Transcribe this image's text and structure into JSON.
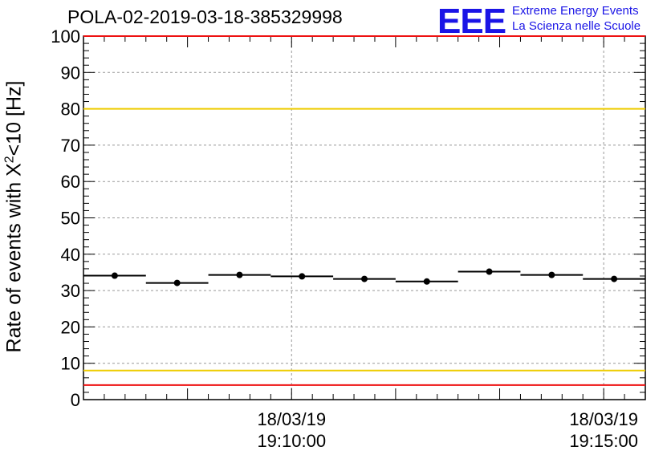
{
  "header": {
    "title": "POLA-02-2019-03-18-385329998",
    "logo": "EEE",
    "logo_line1": "Extreme Energy Events",
    "logo_line2": "La Scienza nelle Scuole"
  },
  "axis": {
    "ylabel_main": "Rate of events with X",
    "ylabel_sup": "2",
    "ylabel_tail": "<10 [Hz]"
  },
  "colors": {
    "red_line": "#ee1111",
    "yellow_line": "#eecc00",
    "grid": "#999999",
    "data": "#000000"
  },
  "chart_data": {
    "type": "scatter",
    "title": "POLA-02-2019-03-18-385329998",
    "xlabel": "",
    "ylabel": "Rate of events with X^2<10 [Hz]",
    "ylim": [
      0,
      100
    ],
    "yticks": [
      0,
      10,
      20,
      30,
      40,
      50,
      60,
      70,
      80,
      90,
      100
    ],
    "xlim_seconds_from_19_06_40": [
      0,
      540
    ],
    "xtick_labels": [
      {
        "date": "18/03/19",
        "time": "19:10:00",
        "t": 200
      },
      {
        "date": "18/03/19",
        "time": "19:15:00",
        "t": 500
      }
    ],
    "grid": true,
    "series": [
      {
        "bin_start_s": [
          0,
          60,
          120,
          180,
          240,
          300,
          360,
          420,
          480
        ],
        "bin_width_s": 60,
        "values": [
          34.1,
          32.1,
          34.3,
          33.9,
          33.2,
          32.5,
          35.2,
          34.3,
          33.2
        ]
      }
    ],
    "reference_lines": [
      {
        "y": 100,
        "color": "red"
      },
      {
        "y": 80,
        "color": "yellow"
      },
      {
        "y": 8,
        "color": "yellow"
      },
      {
        "y": 4,
        "color": "red"
      }
    ]
  }
}
